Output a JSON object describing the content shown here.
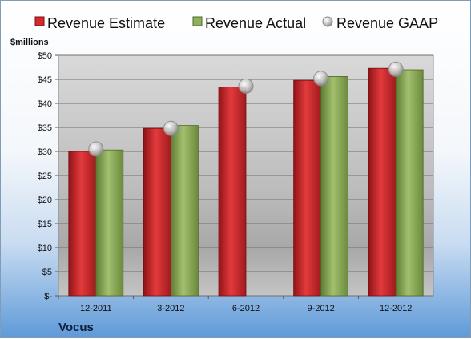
{
  "chart_data": {
    "type": "bar",
    "unit_label": "$millions",
    "company": "Vocus",
    "categories": [
      "12-2011",
      "3-2012",
      "6-2012",
      "9-2012",
      "12-2012"
    ],
    "series": [
      {
        "name": "Revenue Estimate",
        "kind": "bar",
        "color": "#d42a2e",
        "values": [
          30.0,
          34.8,
          43.4,
          44.8,
          47.3
        ]
      },
      {
        "name": "Revenue Actual",
        "kind": "bar",
        "color": "#8fb05c",
        "values": [
          30.3,
          35.4,
          null,
          45.6,
          47.0
        ]
      },
      {
        "name": "Revenue GAAP",
        "kind": "marker",
        "color": "#c8c8c8",
        "values": [
          30.5,
          34.8,
          43.6,
          45.2,
          47.1
        ]
      }
    ],
    "ylim": [
      0,
      50
    ],
    "yticks": [
      0,
      5,
      10,
      15,
      20,
      25,
      30,
      35,
      40,
      45,
      50
    ],
    "ytick_labels": [
      "$-",
      "$5",
      "$10",
      "$15",
      "$20",
      "$25",
      "$30",
      "$35",
      "$40",
      "$45",
      "$50"
    ],
    "grid": true,
    "legend_position": "top"
  }
}
